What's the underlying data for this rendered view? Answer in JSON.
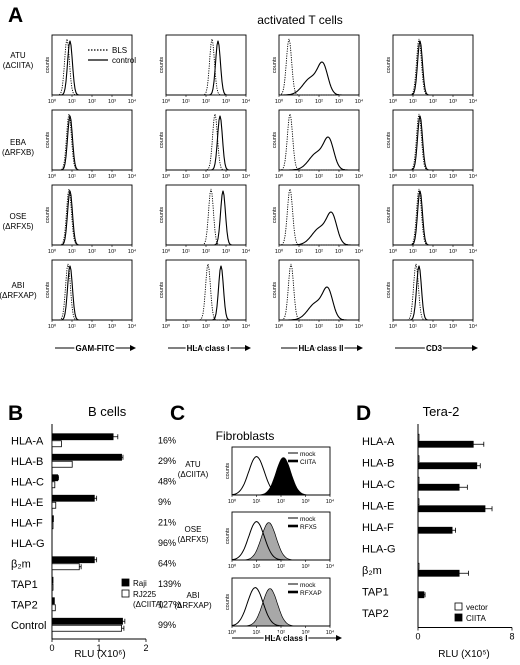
{
  "panel_letters": {
    "A": "A",
    "B": "B",
    "C": "C",
    "D": "D"
  },
  "panel_a": {
    "title": "activated T cells",
    "legend": {
      "dotted": "BLS",
      "solid": "control"
    },
    "row_labels": [
      {
        "line1": "ATU",
        "line2": "(ΔCIITA)"
      },
      {
        "line1": "EBA",
        "line2": "(ΔRFXB)"
      },
      {
        "line1": "OSE",
        "line2": "(ΔRFX5)"
      },
      {
        "line1": "ABI",
        "line2": "(ΔRFXAP)"
      }
    ],
    "y_axis_label": "counts",
    "tick_labels": [
      "10⁰",
      "10¹",
      "10²",
      "10³",
      "10⁴"
    ],
    "column_labels": [
      "GAM-FITC",
      "HLA class I",
      "HLA class II",
      "CD3"
    ]
  },
  "panel_b": {
    "title": "B cells",
    "xlabel": "RLU (X10⁶)",
    "ticks": [
      "0",
      "1",
      "2"
    ],
    "legend": [
      {
        "name": "Raji",
        "fill": "#000000"
      },
      {
        "name": "RJ225",
        "sub": "(ΔCIITA)",
        "fill": "#ffffff"
      }
    ],
    "percentages": [
      "16%",
      "29%",
      "48%",
      "9%",
      "21%",
      "96%",
      "64%",
      "139%",
      "127%",
      "99%"
    ]
  },
  "panel_c": {
    "title": "Fibroblasts",
    "row_labels": [
      {
        "line1": "ATU",
        "line2": "(ΔCIITA)",
        "legend": [
          "mock",
          "CIITA"
        ]
      },
      {
        "line1": "OSE",
        "line2": "(ΔRFX5)",
        "legend": [
          "mock",
          "RFX5"
        ]
      },
      {
        "line1": "ABI",
        "line2": "(ΔRFXAP)",
        "legend": [
          "mock",
          "RFXAP"
        ]
      }
    ],
    "y_axis_label": "counts",
    "tick_labels": [
      "10⁰",
      "10¹",
      "10²",
      "10³",
      "10⁴"
    ],
    "xlabel": "HLA class I"
  },
  "panel_d": {
    "title": "Tera-2",
    "xlabel": "RLU (X10⁵)",
    "ticks": [
      "0",
      "8"
    ],
    "legend": [
      {
        "name": "vector",
        "fill": "#ffffff"
      },
      {
        "name": "CIITA",
        "fill": "#000000"
      }
    ]
  },
  "chart_data": [
    {
      "type": "area",
      "panel": "A",
      "title": "activated T cells",
      "ylabel": "counts",
      "x_scale": "log",
      "xlim": [
        1,
        10000
      ],
      "series": [
        {
          "name": "BLS",
          "style": "dotted"
        },
        {
          "name": "control",
          "style": "solid"
        }
      ],
      "rows": [
        "ATU (ΔCIITA)",
        "EBA (ΔRFXB)",
        "OSE (ΔRFX5)",
        "ABI (ΔRFXAP)"
      ],
      "columns": [
        "GAM-FITC",
        "HLA class I",
        "HLA class II",
        "CD3"
      ],
      "peaks_log10": [
        [
          {
            "bls": 0.75,
            "ctl": 0.9
          },
          {
            "bls": 2.3,
            "ctl": 2.6
          },
          {
            "bls": 0.5,
            "ctl": 2.2
          },
          {
            "bls": 1.3,
            "ctl": 1.35
          }
        ],
        [
          {
            "bls": 0.85,
            "ctl": 0.9
          },
          {
            "bls": 2.45,
            "ctl": 2.7
          },
          {
            "bls": 0.55,
            "ctl": 2.5
          },
          {
            "bls": 1.3,
            "ctl": 1.35
          }
        ],
        [
          {
            "bls": 0.85,
            "ctl": 0.9
          },
          {
            "bls": 2.25,
            "ctl": 2.85
          },
          {
            "bls": 0.55,
            "ctl": 2.65
          },
          {
            "bls": 1.3,
            "ctl": 1.35
          }
        ],
        [
          {
            "bls": 0.8,
            "ctl": 0.9
          },
          {
            "bls": 2.1,
            "ctl": 2.75
          },
          {
            "bls": 0.6,
            "ctl": 2.45
          },
          {
            "bls": 1.15,
            "ctl": 1.3
          }
        ]
      ]
    },
    {
      "type": "bar",
      "panel": "B",
      "title": "B cells",
      "xlabel": "RLU (X10⁶)",
      "xlim": [
        0,
        2
      ],
      "categories": [
        "HLA-A",
        "HLA-B",
        "HLA-C",
        "HLA-E",
        "HLA-F",
        "HLA-G",
        "β₂m",
        "TAP1",
        "TAP2",
        "Control"
      ],
      "series": [
        {
          "name": "Raji",
          "values": [
            1.3,
            1.48,
            0.12,
            0.9,
            0.03,
            0.0,
            0.9,
            0.02,
            0.05,
            1.5
          ]
        },
        {
          "name": "RJ225 (ΔCIITA)",
          "values": [
            0.2,
            0.43,
            0.06,
            0.08,
            0.01,
            0.0,
            0.58,
            0.02,
            0.07,
            1.48
          ]
        }
      ],
      "errors": [
        [
          0.1,
          0.03,
          0.02,
          0.05,
          0.0,
          0.0,
          0.05,
          0.0,
          0.0,
          0.05
        ],
        [
          0.0,
          0.0,
          0.0,
          0.0,
          0.0,
          0.0,
          0.04,
          0.0,
          0.0,
          0.05
        ]
      ]
    },
    {
      "type": "area",
      "panel": "C",
      "title": "Fibroblasts",
      "xlabel": "HLA class I",
      "ylabel": "counts",
      "x_scale": "log",
      "xlim": [
        1,
        10000
      ],
      "rows": [
        "ATU (ΔCIITA)",
        "OSE (ΔRFX5)",
        "ABI (ΔRFXAP)"
      ],
      "series": [
        {
          "name": "mock",
          "peaks_log10": [
            1.0,
            1.0,
            0.95
          ]
        },
        {
          "name": "CIITA / RFX5 / RFXAP",
          "peaks_log10": [
            2.1,
            1.5,
            1.55
          ]
        }
      ]
    },
    {
      "type": "bar",
      "panel": "D",
      "title": "Tera-2",
      "xlabel": "RLU (X10⁵)",
      "xlim": [
        0,
        8
      ],
      "categories": [
        "HLA-A",
        "HLA-B",
        "HLA-C",
        "HLA-E",
        "HLA-F",
        "HLA-G",
        "β₂m",
        "TAP1",
        "TAP2"
      ],
      "series": [
        {
          "name": "vector",
          "values": [
            0.05,
            0.05,
            0.05,
            0.05,
            0.0,
            0.0,
            0.05,
            0.0,
            0.0
          ]
        },
        {
          "name": "CIITA",
          "values": [
            4.7,
            5.0,
            3.5,
            5.7,
            2.9,
            0.0,
            3.5,
            0.5,
            0.0
          ]
        }
      ],
      "errors": [
        [
          0,
          0,
          0,
          0,
          0,
          0,
          0,
          0,
          0
        ],
        [
          0.9,
          0.3,
          0.7,
          0.6,
          0.3,
          0.0,
          0.8,
          0.1,
          0.0
        ]
      ]
    }
  ]
}
